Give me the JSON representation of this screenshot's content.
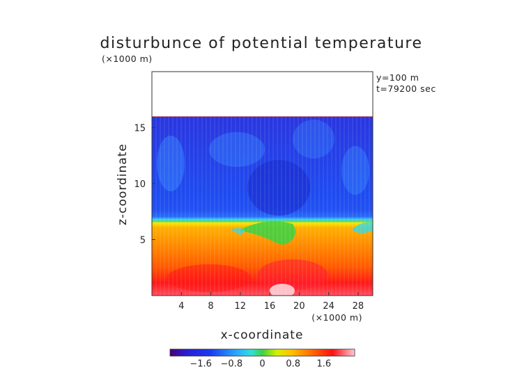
{
  "chart_data": {
    "type": "heatmap",
    "title": "disturbunce of potential temperature",
    "scale_note": "(×1000 m)",
    "info_lines": [
      "y=100 m",
      "t=79200 sec"
    ],
    "xlabel": "x-coordinate",
    "ylabel": "z-coordinate",
    "x_unit": "(×1000 m)",
    "xlim": [
      0,
      30
    ],
    "ylim": [
      0,
      20
    ],
    "x_ticks": [
      4,
      8,
      12,
      16,
      20,
      24,
      28
    ],
    "y_ticks": [
      5,
      10,
      15
    ],
    "colorbar": {
      "ticks": [
        "−1.6",
        "−0.8",
        "0",
        "0.8",
        "1.6"
      ],
      "tick_values": [
        -1.6,
        -0.8,
        0,
        0.8,
        1.6
      ],
      "range": [
        -2.4,
        2.4
      ]
    },
    "field_description_values": {
      "domain_top_km": 16,
      "upper_layer_value": -1.3,
      "lower_layer_value": 1.4
    }
  },
  "colors": {
    "purple": "#5a0a8c",
    "blue": "#1a2ad8",
    "cyan": "#28c8ff",
    "green": "#32cc40",
    "yellow": "#fff000",
    "orange": "#ff8800",
    "red": "#ff1010",
    "pink": "#ffc8d4"
  }
}
